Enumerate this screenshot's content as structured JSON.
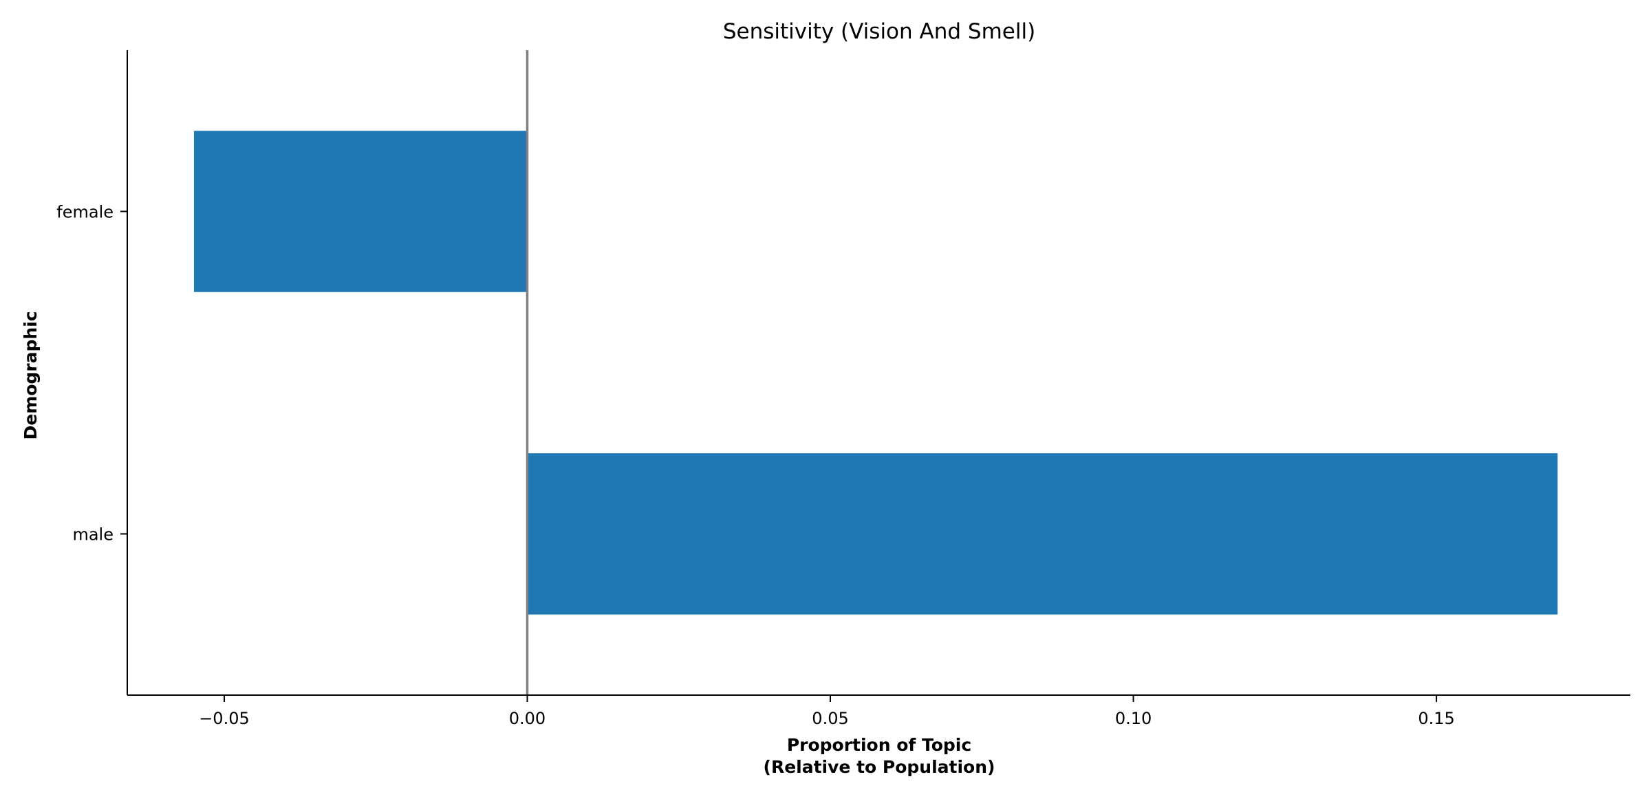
{
  "chart_data": {
    "type": "bar",
    "orientation": "horizontal",
    "title": "Sensitivity (Vision And Smell)",
    "xlabel_lines": [
      "Proportion of Topic",
      "(Relative to Population)"
    ],
    "ylabel": "Demographic",
    "categories": [
      "female",
      "male"
    ],
    "values": [
      -0.055,
      0.17
    ],
    "xlim": [
      -0.066,
      0.182
    ],
    "xticks": [
      -0.05,
      0.0,
      0.05,
      0.1,
      0.15
    ],
    "xtick_labels": [
      "−0.05",
      "0.00",
      "0.05",
      "0.10",
      "0.15"
    ],
    "reference_line": 0.0,
    "grid": false,
    "legend": "none",
    "colors": {
      "bar": "#1f77b4",
      "reference_line": "#808080",
      "axis": "#000000"
    }
  }
}
